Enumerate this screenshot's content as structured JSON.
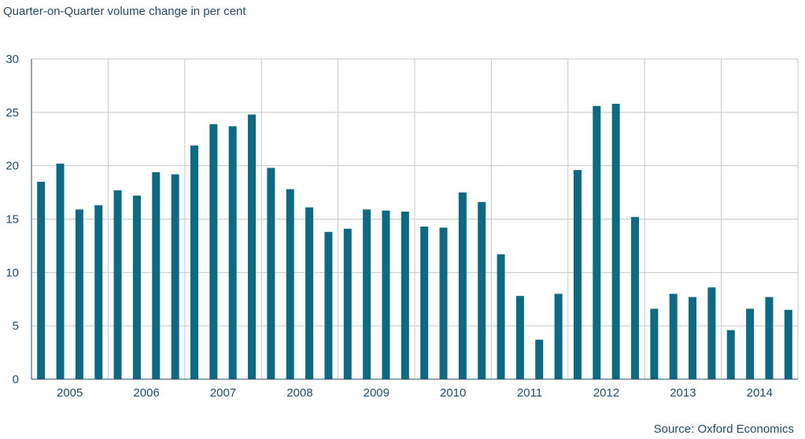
{
  "chart_data": {
    "type": "bar",
    "subtitle": "Quarter-on-Quarter volume change in per cent",
    "source": "Source: Oxford Economics",
    "ylim": [
      0,
      30
    ],
    "yticks": [
      0,
      5,
      10,
      15,
      20,
      25,
      30
    ],
    "year_labels": [
      "2005",
      "2006",
      "2007",
      "2008",
      "2009",
      "2010",
      "2011",
      "2012",
      "2013",
      "2014"
    ],
    "categories": [
      "2005 Q1",
      "2005 Q2",
      "2005 Q3",
      "2005 Q4",
      "2006 Q1",
      "2006 Q2",
      "2006 Q3",
      "2006 Q4",
      "2007 Q1",
      "2007 Q2",
      "2007 Q3",
      "2007 Q4",
      "2008 Q1",
      "2008 Q2",
      "2008 Q3",
      "2008 Q4",
      "2009 Q1",
      "2009 Q2",
      "2009 Q3",
      "2009 Q4",
      "2010 Q1",
      "2010 Q2",
      "2010 Q3",
      "2010 Q4",
      "2011 Q1",
      "2011 Q2",
      "2011 Q3",
      "2011 Q4",
      "2012 Q1",
      "2012 Q2",
      "2012 Q3",
      "2012 Q4",
      "2013 Q1",
      "2013 Q2",
      "2013 Q3",
      "2013 Q4",
      "2014 Q1",
      "2014 Q2",
      "2014 Q3",
      "2014 Q4"
    ],
    "values": [
      18.5,
      20.2,
      15.9,
      16.3,
      17.7,
      17.2,
      19.4,
      19.2,
      21.9,
      23.9,
      23.7,
      24.8,
      19.8,
      17.8,
      16.1,
      13.8,
      14.1,
      15.9,
      15.8,
      15.7,
      14.3,
      14.2,
      17.5,
      16.6,
      11.7,
      7.8,
      3.7,
      8.0,
      19.6,
      25.6,
      25.8,
      15.2,
      6.6,
      8.0,
      7.7,
      8.6,
      4.6,
      6.6,
      7.7,
      6.5
    ],
    "bar_color": "#0d6a84",
    "grid_color": "#c8c8c8",
    "axis_color": "#1f4e6b"
  }
}
